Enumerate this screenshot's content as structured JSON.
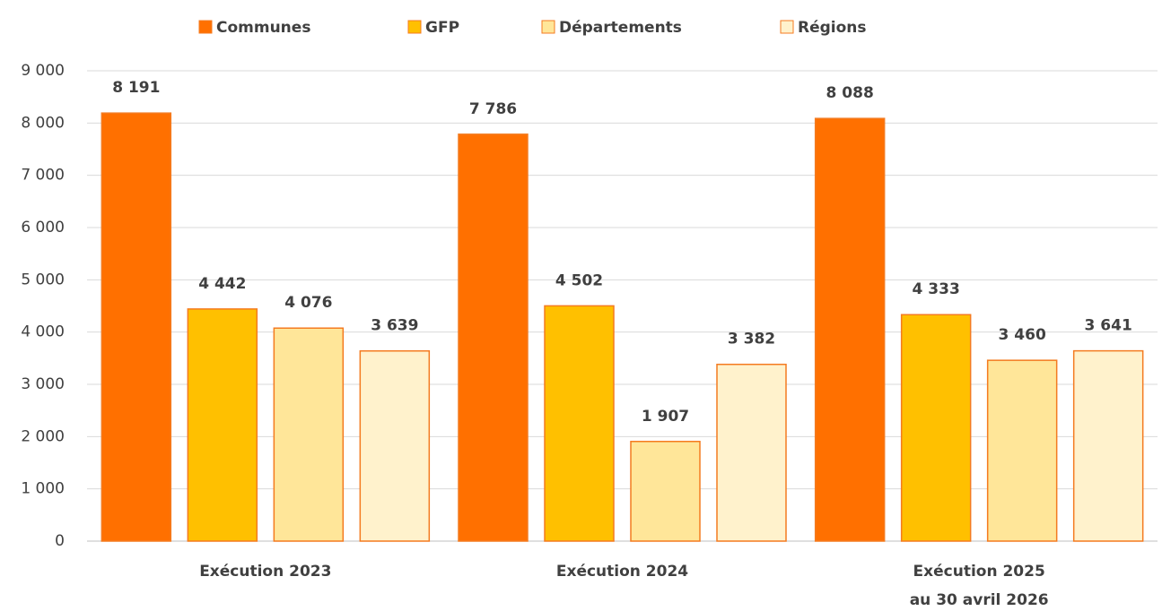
{
  "chart_data": {
    "type": "bar",
    "categories": [
      "Exécution 2023",
      "Exécution 2024",
      "Exécution 2025\nau 30 avril 2026"
    ],
    "series": [
      {
        "name": "Communes",
        "color": "#ff7000",
        "values": [
          8191,
          7786,
          8088
        ],
        "value_labels": [
          "8 191",
          "7 786",
          "8 088"
        ]
      },
      {
        "name": "GFP",
        "color": "#ffc000",
        "values": [
          4442,
          4502,
          4333
        ],
        "value_labels": [
          "4 442",
          "4 502",
          "4 333"
        ]
      },
      {
        "name": "Départements",
        "color": "#ffe699",
        "values": [
          4076,
          1907,
          3460
        ],
        "value_labels": [
          "4 076",
          "1 907",
          "3 460"
        ]
      },
      {
        "name": "Régions",
        "color": "#fff2cc",
        "values": [
          3639,
          3382,
          3641
        ],
        "value_labels": [
          "3 639",
          "3 382",
          "3 641"
        ]
      }
    ],
    "ylim": [
      0,
      9000
    ],
    "yticks": [
      0,
      {
        "value": 1000,
        "label": "1 000"
      },
      {
        "value": 2000,
        "label": "2 000"
      },
      {
        "value": 3000,
        "label": "3 000"
      },
      {
        "value": 4000,
        "label": "4 000"
      },
      {
        "value": 5000,
        "label": "5 000"
      },
      {
        "value": 6000,
        "label": "6 000"
      },
      {
        "value": 7000,
        "label": "7 000"
      },
      {
        "value": 8000,
        "label": "8 000"
      },
      {
        "value": 9000,
        "label": "9 000"
      }
    ],
    "grid": true,
    "legend": "top"
  }
}
